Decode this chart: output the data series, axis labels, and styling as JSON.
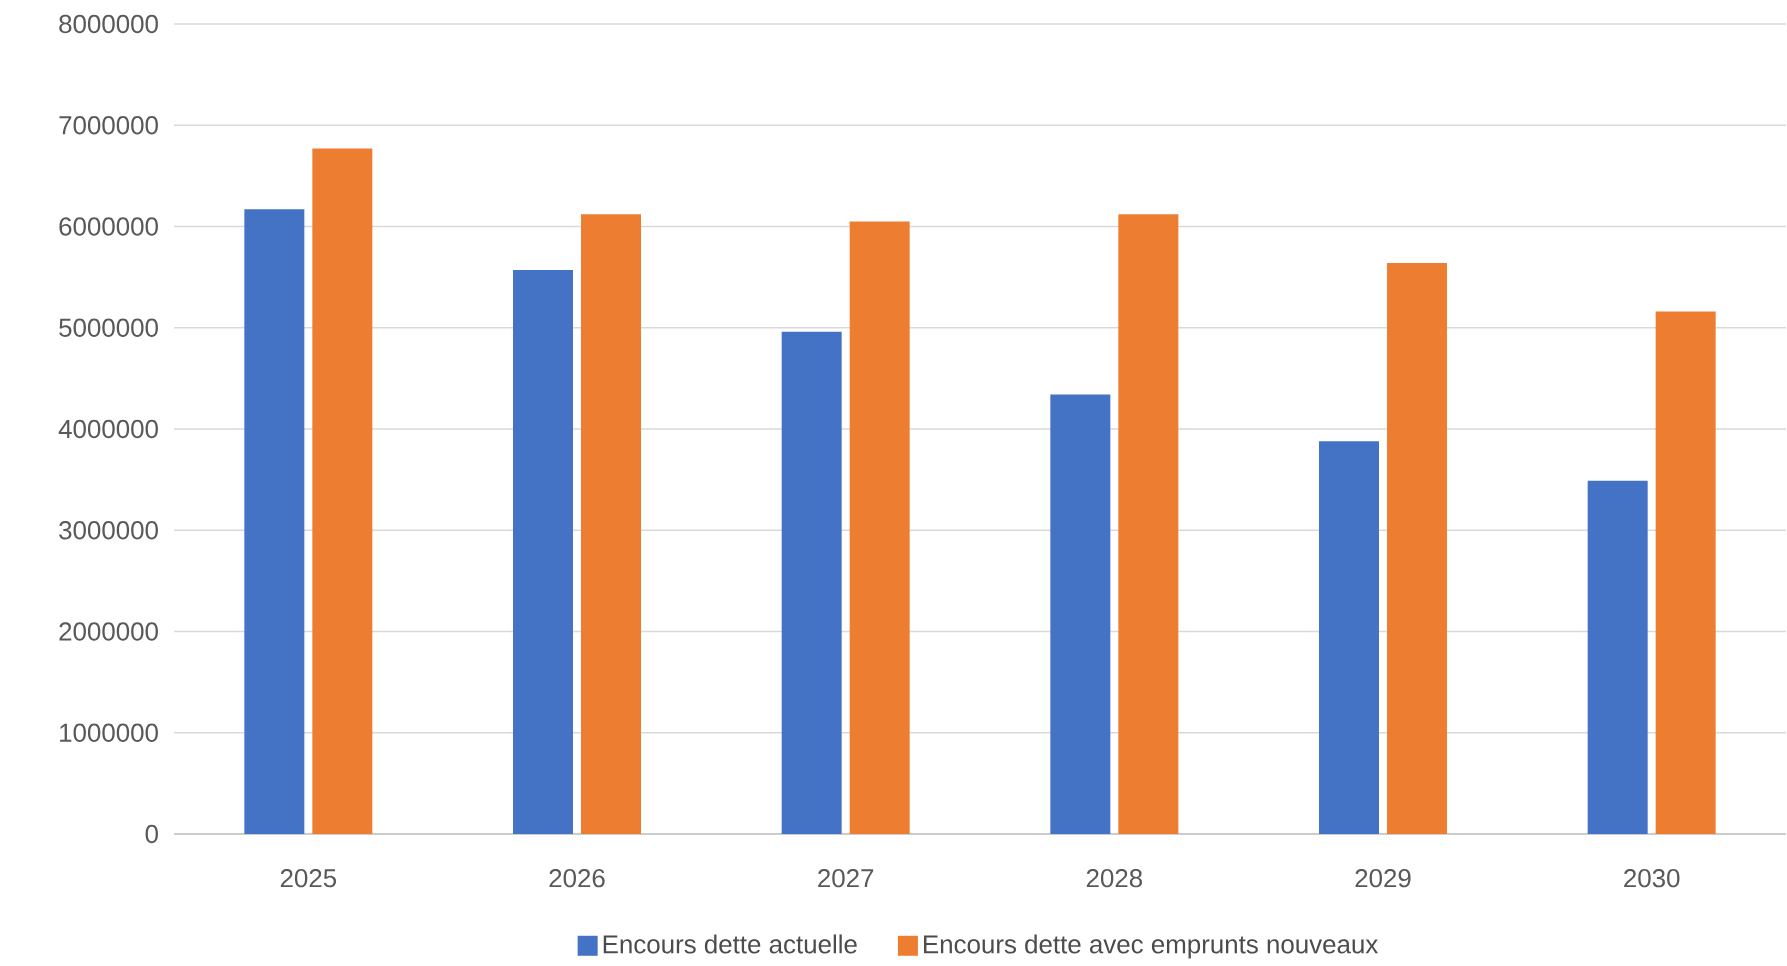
{
  "chart_data": {
    "type": "bar",
    "categories": [
      "2025",
      "2026",
      "2027",
      "2028",
      "2029",
      "2030"
    ],
    "series": [
      {
        "name": "Encours dette actuelle",
        "color": "#4472c4",
        "values": [
          6170000,
          5570000,
          4960000,
          4340000,
          3880000,
          3490000
        ]
      },
      {
        "name": "Encours dette avec emprunts nouveaux",
        "color": "#ed7d31",
        "values": [
          6770000,
          6120000,
          6050000,
          6120000,
          5640000,
          5160000
        ]
      }
    ],
    "ylim": [
      0,
      8000000
    ],
    "yticks": [
      0,
      1000000,
      2000000,
      3000000,
      4000000,
      5000000,
      6000000,
      7000000,
      8000000
    ],
    "grid": "y",
    "legend": "bottom"
  }
}
